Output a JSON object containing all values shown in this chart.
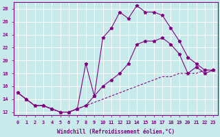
{
  "background_color": "#c8eaea",
  "grid_color": "#ffffff",
  "line_color": "#800080",
  "xlabel": "Windchill (Refroidissement éolien,°C)",
  "xlim": [
    -0.5,
    23.5
  ],
  "ylim": [
    11.5,
    29
  ],
  "xticks": [
    0,
    1,
    2,
    3,
    4,
    5,
    6,
    7,
    8,
    9,
    10,
    11,
    12,
    13,
    14,
    15,
    16,
    17,
    18,
    19,
    20,
    21,
    22,
    23
  ],
  "yticks": [
    12,
    14,
    16,
    18,
    20,
    22,
    24,
    26,
    28
  ],
  "line1_x": [
    0,
    1,
    2,
    3,
    4,
    5,
    6,
    7,
    8,
    9,
    10,
    11,
    12,
    13,
    14,
    15,
    16,
    17,
    18,
    19,
    20,
    21,
    22,
    23
  ],
  "line1_y": [
    15,
    14,
    13,
    13,
    12.5,
    12,
    12,
    12.5,
    19.5,
    14.5,
    23.5,
    25,
    27.5,
    26.5,
    28.5,
    27.5,
    27.5,
    27,
    25,
    23,
    20.5,
    19.5,
    18.5,
    18.5
  ],
  "line2_x": [
    0,
    1,
    2,
    3,
    4,
    5,
    6,
    7,
    8,
    9,
    10,
    11,
    12,
    13,
    14,
    15,
    16,
    17,
    18,
    19,
    20,
    21,
    22,
    23
  ],
  "line2_y": [
    15,
    14,
    13,
    13,
    12.5,
    12,
    12,
    12.5,
    13,
    14.5,
    16,
    17,
    18,
    19.5,
    22.5,
    23,
    23,
    23.5,
    22.5,
    21,
    18,
    19,
    18,
    18.5
  ],
  "line3_x": [
    0,
    1,
    2,
    3,
    4,
    5,
    6,
    7,
    8,
    9,
    10,
    11,
    12,
    13,
    14,
    15,
    16,
    17,
    18,
    19,
    20,
    21,
    22,
    23
  ],
  "line3_y": [
    15,
    14,
    13,
    13,
    12.5,
    12,
    12,
    12.5,
    13,
    13.5,
    14,
    14.5,
    15,
    15.5,
    16,
    16.5,
    17,
    17.5,
    17.5,
    18,
    18,
    18,
    18.5,
    18.5
  ]
}
